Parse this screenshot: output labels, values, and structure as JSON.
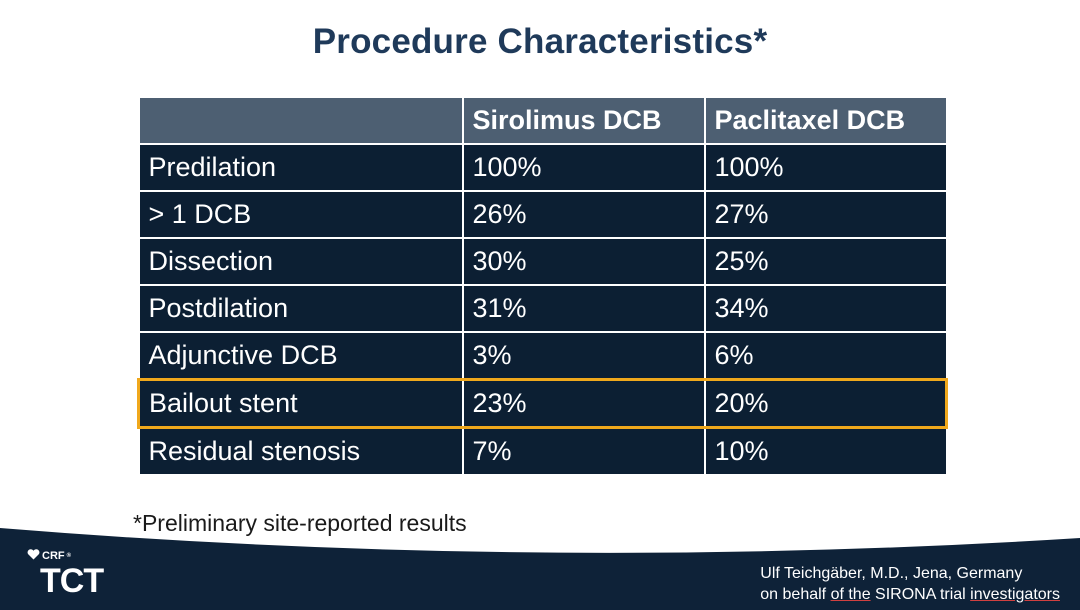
{
  "slide": {
    "title": "Procedure Characteristics*",
    "footnote": "*Preliminary site-reported results"
  },
  "table": {
    "headers": [
      "",
      "Sirolimus DCB",
      "Paclitaxel DCB"
    ],
    "rows": [
      [
        "Predilation",
        "100%",
        "100%"
      ],
      [
        "> 1 DCB",
        "26%",
        "27%"
      ],
      [
        "Dissection",
        "30%",
        "25%"
      ],
      [
        "Postdilation",
        "31%",
        "34%"
      ],
      [
        "Adjunctive DCB",
        "3%",
        "6%"
      ],
      [
        "Bailout stent",
        "23%",
        "20%"
      ],
      [
        "Residual stenosis",
        "7%",
        "10%"
      ]
    ],
    "highlighted_row_label": "Bailout stent"
  },
  "footer": {
    "logo_small": "CRF",
    "logo_mark": "®",
    "logo_main": "TCT",
    "credit_line1": "Ulf Teichgäber, M.D., Jena, Germany",
    "credit_line2_a": "on behalf ",
    "credit_line2_b": "of the",
    "credit_line2_c": " SIRONA trial ",
    "credit_line2_d": "investigators"
  },
  "colors": {
    "title": "#1f3a5a",
    "header_bg": "#4d5f72",
    "cell_bg": "#0c1f33",
    "highlight": "#f0a81c",
    "footer_bg": "#0e2238"
  }
}
